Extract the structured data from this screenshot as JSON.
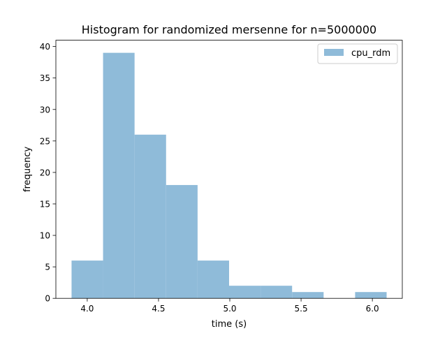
{
  "chart_data": {
    "type": "bar",
    "title": "Histogram for randomized mersenne for n=5000000",
    "xlabel": "time (s)",
    "ylabel": "frequency",
    "xlim": [
      3.78,
      6.21
    ],
    "ylim": [
      0,
      41
    ],
    "xticks": [
      4.0,
      4.5,
      5.0,
      5.5,
      6.0
    ],
    "xtick_labels": [
      "4.0",
      "4.5",
      "5.0",
      "5.5",
      "6.0"
    ],
    "yticks": [
      0,
      5,
      10,
      15,
      20,
      25,
      30,
      35,
      40
    ],
    "ytick_labels": [
      "0",
      "5",
      "10",
      "15",
      "20",
      "25",
      "30",
      "35",
      "40"
    ],
    "grid": false,
    "legend_position": "upper right",
    "series": [
      {
        "name": "cpu_rdm",
        "color": "#8fbbd9",
        "bin_edges": [
          3.89,
          4.111,
          4.332,
          4.553,
          4.774,
          4.995,
          5.216,
          5.437,
          5.658,
          5.879,
          6.1
        ],
        "counts": [
          6,
          39,
          26,
          18,
          6,
          2,
          2,
          1,
          0,
          1
        ]
      }
    ]
  }
}
